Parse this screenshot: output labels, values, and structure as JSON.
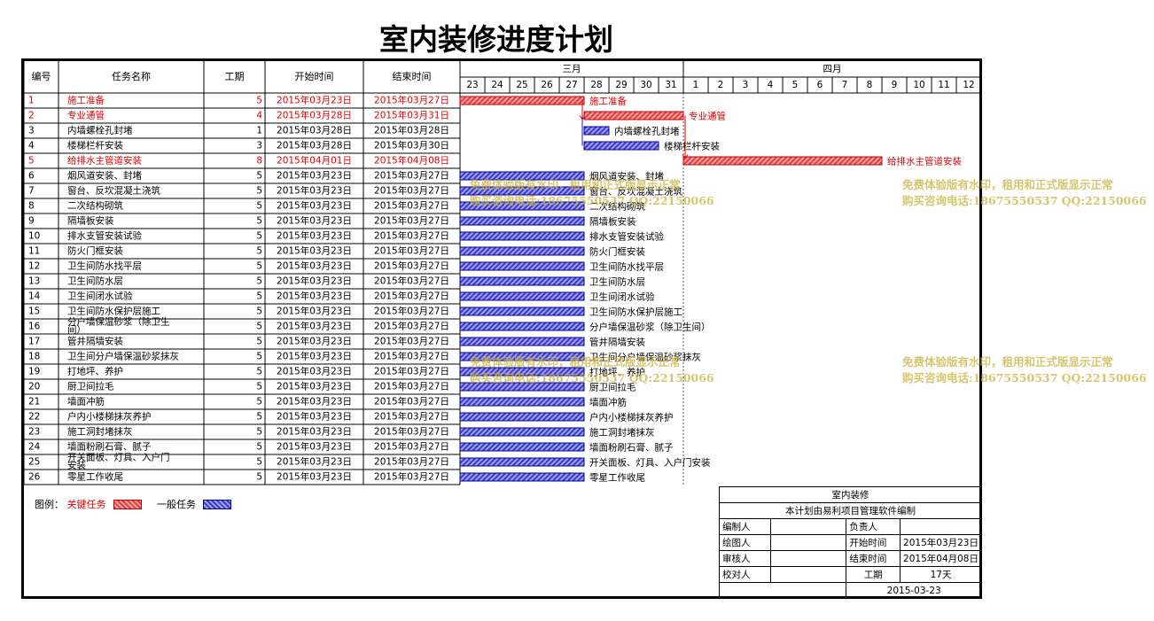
{
  "title": "室内装修进度计划",
  "table_headers": {
    "id": "编号",
    "name": "任务名称",
    "duration": "工期",
    "start": "开始时间",
    "end": "结束时间"
  },
  "months": [
    {
      "label": "三月",
      "days": [
        "23",
        "24",
        "25",
        "26",
        "27",
        "28",
        "29",
        "30",
        "31"
      ]
    },
    {
      "label": "四月",
      "days": [
        "1",
        "2",
        "3",
        "4",
        "5",
        "6",
        "7",
        "8",
        "9",
        "10",
        "11",
        "12"
      ]
    }
  ],
  "colors": {
    "critical": "#e00000",
    "normal": "#2020c0",
    "watermark": "#c8b23c"
  },
  "chart_data": {
    "type": "gantt",
    "x_start": "2015-03-23",
    "x_end": "2015-04-12",
    "today_line": "2015-03-31",
    "tasks": [
      {
        "id": "1",
        "name": "施工准备",
        "duration": "5",
        "start": "2015年03月23日",
        "end": "2015年03月27日",
        "s": "2015-03-23",
        "e": "2015-03-27",
        "critical": true,
        "label": "施工准备"
      },
      {
        "id": "2",
        "name": "专业通管",
        "duration": "4",
        "start": "2015年03月28日",
        "end": "2015年03月31日",
        "s": "2015-03-28",
        "e": "2015-03-31",
        "critical": true,
        "label": "专业通管"
      },
      {
        "id": "3",
        "name": "内墙螺栓孔封堵",
        "duration": "1",
        "start": "2015年03月28日",
        "end": "2015年03月28日",
        "s": "2015-03-28",
        "e": "2015-03-28",
        "critical": false,
        "label": "内墙螺栓孔封堵"
      },
      {
        "id": "4",
        "name": "楼梯栏杆安装",
        "duration": "3",
        "start": "2015年03月28日",
        "end": "2015年03月30日",
        "s": "2015-03-28",
        "e": "2015-03-30",
        "critical": false,
        "label": "楼梯栏杆安装"
      },
      {
        "id": "5",
        "name": "给排水主管道安装",
        "duration": "8",
        "start": "2015年04月01日",
        "end": "2015年04月08日",
        "s": "2015-04-01",
        "e": "2015-04-08",
        "critical": true,
        "label": "给排水主管道安装"
      },
      {
        "id": "6",
        "name": "烟风道安装、封堵",
        "duration": "5",
        "start": "2015年03月23日",
        "end": "2015年03月27日",
        "s": "2015-03-23",
        "e": "2015-03-27",
        "critical": false,
        "label": "烟风道安装、封堵"
      },
      {
        "id": "7",
        "name": "窗台、反坎混凝土浇筑",
        "duration": "5",
        "start": "2015年03月23日",
        "end": "2015年03月27日",
        "s": "2015-03-23",
        "e": "2015-03-27",
        "critical": false,
        "label": "窗台、反坎混凝土浇筑"
      },
      {
        "id": "8",
        "name": "二次结构砌筑",
        "duration": "5",
        "start": "2015年03月23日",
        "end": "2015年03月27日",
        "s": "2015-03-23",
        "e": "2015-03-27",
        "critical": false,
        "label": "二次结构砌筑"
      },
      {
        "id": "9",
        "name": "隔墙板安装",
        "duration": "5",
        "start": "2015年03月23日",
        "end": "2015年03月27日",
        "s": "2015-03-23",
        "e": "2015-03-27",
        "critical": false,
        "label": "隔墙板安装"
      },
      {
        "id": "10",
        "name": "排水支管安装试验",
        "duration": "5",
        "start": "2015年03月23日",
        "end": "2015年03月27日",
        "s": "2015-03-23",
        "e": "2015-03-27",
        "critical": false,
        "label": "排水支管安装试验"
      },
      {
        "id": "11",
        "name": "防火门框安装",
        "duration": "5",
        "start": "2015年03月23日",
        "end": "2015年03月27日",
        "s": "2015-03-23",
        "e": "2015-03-27",
        "critical": false,
        "label": "防火门框安装"
      },
      {
        "id": "12",
        "name": "卫生间防水找平层",
        "duration": "5",
        "start": "2015年03月23日",
        "end": "2015年03月27日",
        "s": "2015-03-23",
        "e": "2015-03-27",
        "critical": false,
        "label": "卫生间防水找平层"
      },
      {
        "id": "13",
        "name": "卫生间防水层",
        "duration": "5",
        "start": "2015年03月23日",
        "end": "2015年03月27日",
        "s": "2015-03-23",
        "e": "2015-03-27",
        "critical": false,
        "label": "卫生间防水层"
      },
      {
        "id": "14",
        "name": "卫生间闭水试验",
        "duration": "5",
        "start": "2015年03月23日",
        "end": "2015年03月27日",
        "s": "2015-03-23",
        "e": "2015-03-27",
        "critical": false,
        "label": "卫生间闭水试验"
      },
      {
        "id": "15",
        "name": "卫生间防水保护层施工",
        "duration": "5",
        "start": "2015年03月23日",
        "end": "2015年03月27日",
        "s": "2015-03-23",
        "e": "2015-03-27",
        "critical": false,
        "label": "卫生间防水保护层施工"
      },
      {
        "id": "16",
        "name": "分户墙保温砂浆（除卫生间）",
        "duration": "5",
        "start": "2015年03月23日",
        "end": "2015年03月27日",
        "s": "2015-03-23",
        "e": "2015-03-27",
        "critical": false,
        "label": "分户墙保温砂浆（除卫生间）"
      },
      {
        "id": "17",
        "name": "管井隔墙安装",
        "duration": "5",
        "start": "2015年03月23日",
        "end": "2015年03月27日",
        "s": "2015-03-23",
        "e": "2015-03-27",
        "critical": false,
        "label": "管井隔墙安装"
      },
      {
        "id": "18",
        "name": "卫生间分户墙保温砂浆抹灰",
        "duration": "5",
        "start": "2015年03月23日",
        "end": "2015年03月27日",
        "s": "2015-03-23",
        "e": "2015-03-27",
        "critical": false,
        "label": "卫生间分户墙保温砂浆抹灰"
      },
      {
        "id": "19",
        "name": "打地坪、养护",
        "duration": "5",
        "start": "2015年03月23日",
        "end": "2015年03月27日",
        "s": "2015-03-23",
        "e": "2015-03-27",
        "critical": false,
        "label": "打地坪、养护"
      },
      {
        "id": "20",
        "name": "厨卫间拉毛",
        "duration": "5",
        "start": "2015年03月23日",
        "end": "2015年03月27日",
        "s": "2015-03-23",
        "e": "2015-03-27",
        "critical": false,
        "label": "厨卫间拉毛"
      },
      {
        "id": "21",
        "name": "墙面冲筋",
        "duration": "5",
        "start": "2015年03月23日",
        "end": "2015年03月27日",
        "s": "2015-03-23",
        "e": "2015-03-27",
        "critical": false,
        "label": "墙面冲筋"
      },
      {
        "id": "22",
        "name": "户内小楼梯抹灰养护",
        "duration": "5",
        "start": "2015年03月23日",
        "end": "2015年03月27日",
        "s": "2015-03-23",
        "e": "2015-03-27",
        "critical": false,
        "label": "户内小楼梯抹灰养护"
      },
      {
        "id": "23",
        "name": "施工洞封堵抹灰",
        "duration": "5",
        "start": "2015年03月23日",
        "end": "2015年03月27日",
        "s": "2015-03-23",
        "e": "2015-03-27",
        "critical": false,
        "label": "施工洞封堵抹灰"
      },
      {
        "id": "24",
        "name": "墙面粉刷石膏、腻子",
        "duration": "5",
        "start": "2015年03月23日",
        "end": "2015年03月27日",
        "s": "2015-03-23",
        "e": "2015-03-27",
        "critical": false,
        "label": "墙面粉刷石膏、腻子"
      },
      {
        "id": "25",
        "name": "开关面板、灯具、入户门安装",
        "duration": "5",
        "start": "2015年03月23日",
        "end": "2015年03月27日",
        "s": "2015-03-23",
        "e": "2015-03-27",
        "critical": false,
        "label": "开关面板、灯具、入户门安装"
      },
      {
        "id": "26",
        "name": "零星工作收尾",
        "duration": "5",
        "start": "2015年03月23日",
        "end": "2015年03月27日",
        "s": "2015-03-23",
        "e": "2015-03-27",
        "critical": false,
        "label": "零星工作收尾"
      }
    ]
  },
  "legend": {
    "title": "图例：",
    "critical": "关键任务",
    "normal": "一般任务"
  },
  "info": {
    "project": "室内装修",
    "software": "本计划由易利项目管理软件编制",
    "editor_label": "编制人",
    "editor": "",
    "owner_label": "负责人",
    "owner": "",
    "drawer_label": "绘图人",
    "drawer": "",
    "start_label": "开始时间",
    "start": "2015年03月23日",
    "reviewer_label": "审核人",
    "reviewer": "",
    "end_label": "结束时间",
    "end": "2015年04月08日",
    "checker_label": "校对人",
    "checker": "",
    "duration_label": "工期",
    "duration": "17天",
    "date": "2015-03-23"
  },
  "watermark": {
    "line1": "免费体验版有水印，租用和正式版显示正常",
    "line2": "购买咨询电话:18675550537 QQ:22150066"
  }
}
